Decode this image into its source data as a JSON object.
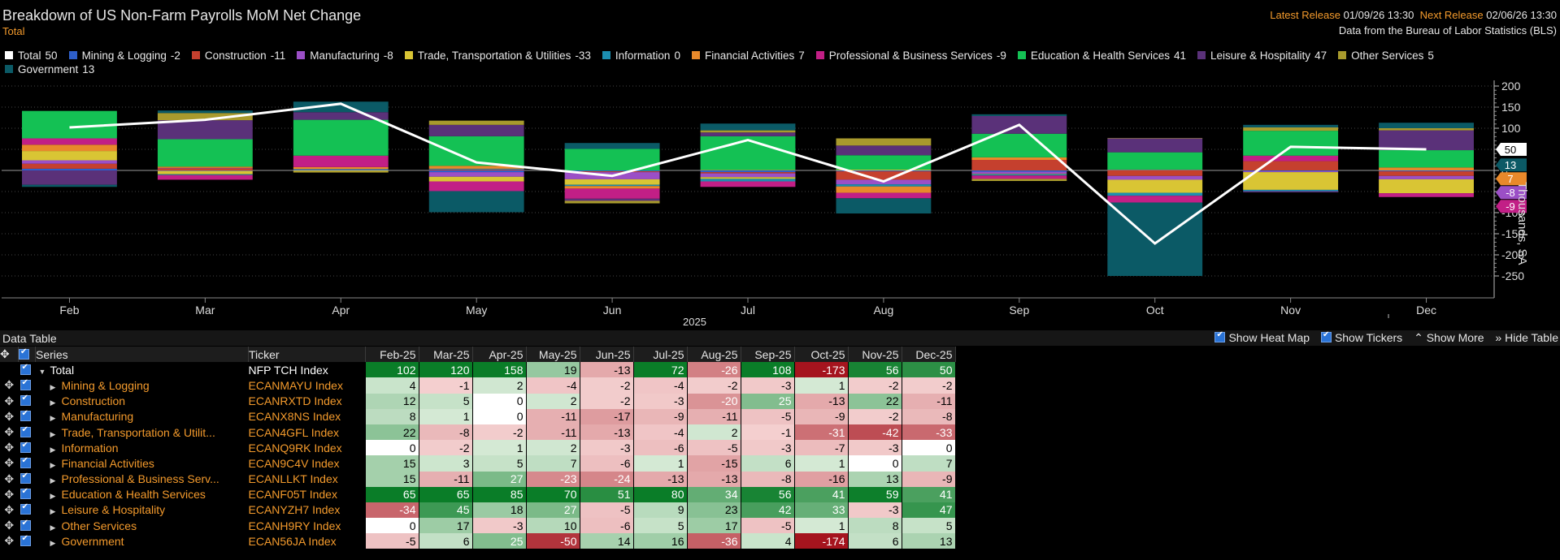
{
  "header": {
    "title": "Breakdown of US Non-Farm Payrolls MoM Net Change",
    "subtitle": "Total",
    "latest_release_label": "Latest Release",
    "latest_release_value": "01/09/26 13:30",
    "next_release_label": "Next Release",
    "next_release_value": "02/06/26 13:30",
    "source": "Data from the Bureau of Labor Statistics (BLS)"
  },
  "legend": [
    {
      "name": "Total",
      "value": "50",
      "color": "#ffffff"
    },
    {
      "name": "Mining & Logging",
      "value": "-2",
      "color": "#2e5fc9"
    },
    {
      "name": "Construction",
      "value": "-11",
      "color": "#c5402e"
    },
    {
      "name": "Manufacturing",
      "value": "-8",
      "color": "#9b4fc6"
    },
    {
      "name": "Trade, Transportation & Utilities",
      "value": "-33",
      "color": "#d9c534"
    },
    {
      "name": "Information",
      "value": "0",
      "color": "#1c8eb0"
    },
    {
      "name": "Financial Activities",
      "value": "7",
      "color": "#e8892b"
    },
    {
      "name": "Professional & Business Services",
      "value": "-9",
      "color": "#c21f86"
    },
    {
      "name": "Education & Health Services",
      "value": "41",
      "color": "#14c154"
    },
    {
      "name": "Leisure & Hospitality",
      "value": "47",
      "color": "#5a3179"
    },
    {
      "name": "Other Services",
      "value": "5",
      "color": "#a89a2d"
    },
    {
      "name": "Government",
      "value": "13",
      "color": "#0b5a66"
    }
  ],
  "chart_data": {
    "type": "bar",
    "stacked": true,
    "categories": [
      "Feb",
      "Mar",
      "Apr",
      "May",
      "Jun",
      "Jul",
      "Aug",
      "Sep",
      "Oct",
      "Nov",
      "Dec"
    ],
    "xlabel": "2025",
    "ylabel": "Thousands, SA",
    "ylim": [
      -300,
      200
    ],
    "yticks": [
      200,
      150,
      100,
      50,
      0,
      -50,
      -100,
      -150,
      -200,
      -250
    ],
    "axis_tick_labels": [
      "200",
      "150",
      "100",
      "50",
      "0",
      "-50",
      "-100",
      "-150",
      "-200",
      "-250"
    ],
    "line": {
      "name": "Total",
      "color": "#ffffff",
      "values": [
        102,
        120,
        158,
        19,
        -13,
        72,
        -26,
        108,
        -173,
        56,
        50
      ]
    },
    "series": [
      {
        "name": "Mining & Logging",
        "color": "#2e5fc9",
        "values": [
          4,
          -1,
          2,
          -4,
          -2,
          -4,
          -2,
          -3,
          1,
          -2,
          -2
        ]
      },
      {
        "name": "Construction",
        "color": "#c5402e",
        "values": [
          12,
          5,
          0,
          2,
          -2,
          -3,
          -20,
          25,
          -13,
          22,
          -11
        ]
      },
      {
        "name": "Manufacturing",
        "color": "#9b4fc6",
        "values": [
          8,
          1,
          0,
          -11,
          -17,
          -9,
          -11,
          -5,
          -9,
          -2,
          -8
        ]
      },
      {
        "name": "Trade, Transportation & Utilities",
        "color": "#d9c534",
        "values": [
          22,
          -8,
          -2,
          -11,
          -13,
          -4,
          2,
          -1,
          -31,
          -42,
          -33
        ]
      },
      {
        "name": "Information",
        "color": "#1c8eb0",
        "values": [
          0,
          -2,
          1,
          2,
          -3,
          -6,
          -5,
          -3,
          -7,
          -3,
          0
        ]
      },
      {
        "name": "Financial Activities",
        "color": "#e8892b",
        "values": [
          15,
          3,
          5,
          7,
          -6,
          1,
          -15,
          6,
          1,
          0,
          7
        ]
      },
      {
        "name": "Professional & Business Services",
        "color": "#c21f86",
        "values": [
          15,
          -11,
          27,
          -23,
          -24,
          -13,
          -13,
          -8,
          -16,
          13,
          -9
        ]
      },
      {
        "name": "Education & Health Services",
        "color": "#14c154",
        "values": [
          65,
          65,
          85,
          70,
          51,
          80,
          34,
          56,
          41,
          59,
          41
        ]
      },
      {
        "name": "Leisure & Hospitality",
        "color": "#5a3179",
        "values": [
          -34,
          45,
          18,
          27,
          -5,
          9,
          23,
          42,
          33,
          -3,
          47
        ]
      },
      {
        "name": "Other Services",
        "color": "#a89a2d",
        "values": [
          0,
          17,
          -3,
          10,
          -6,
          5,
          17,
          -5,
          1,
          8,
          5
        ]
      },
      {
        "name": "Government",
        "color": "#0b5a66",
        "values": [
          -5,
          6,
          25,
          -50,
          14,
          16,
          -36,
          4,
          -174,
          6,
          13
        ]
      }
    ],
    "end_labels": [
      {
        "value": "13",
        "color": "#0b5a66"
      },
      {
        "value": "50",
        "color": "#ffffff"
      },
      {
        "value": "7",
        "color": "#e8892b"
      },
      {
        "value": "-8",
        "color": "#9b4fc6"
      },
      {
        "value": "-9",
        "color": "#c21f86"
      }
    ]
  },
  "data_table": {
    "label": "Data Table",
    "controls": [
      "Show Heat Map",
      "Show Tickers",
      "Show More",
      "Hide Table"
    ],
    "columns": {
      "series": "Series",
      "ticker": "Ticker",
      "months": [
        "Feb-25",
        "Mar-25",
        "Apr-25",
        "May-25",
        "Jun-25",
        "Jul-25",
        "Aug-25",
        "Sep-25",
        "Oct-25",
        "Nov-25",
        "Dec-25"
      ]
    },
    "rows": [
      {
        "series": "Total",
        "ticker": "NFP TCH Index",
        "values": [
          102,
          120,
          158,
          19,
          -13,
          72,
          -26,
          108,
          -173,
          56,
          50
        ]
      },
      {
        "series": "Mining & Logging",
        "ticker": "ECANMAYU Index",
        "values": [
          4,
          -1,
          2,
          -4,
          -2,
          -4,
          -2,
          -3,
          1,
          -2,
          -2
        ]
      },
      {
        "series": "Construction",
        "ticker": "ECANRXTD Index",
        "values": [
          12,
          5,
          0,
          2,
          -2,
          -3,
          -20,
          25,
          -13,
          22,
          -11
        ]
      },
      {
        "series": "Manufacturing",
        "ticker": "ECANX8NS Index",
        "values": [
          8,
          1,
          0,
          -11,
          -17,
          -9,
          -11,
          -5,
          -9,
          -2,
          -8
        ]
      },
      {
        "series": "Trade, Transportation & Utilit...",
        "ticker": "ECAN4GFL Index",
        "values": [
          22,
          -8,
          -2,
          -11,
          -13,
          -4,
          2,
          -1,
          -31,
          -42,
          -33
        ]
      },
      {
        "series": "Information",
        "ticker": "ECANQ9RK Index",
        "values": [
          0,
          -2,
          1,
          2,
          -3,
          -6,
          -5,
          -3,
          -7,
          -3,
          0
        ]
      },
      {
        "series": "Financial Activities",
        "ticker": "ECAN9C4V Index",
        "values": [
          15,
          3,
          5,
          7,
          -6,
          1,
          -15,
          6,
          1,
          0,
          7
        ]
      },
      {
        "series": "Professional & Business Serv...",
        "ticker": "ECANLLKT Index",
        "values": [
          15,
          -11,
          27,
          -23,
          -24,
          -13,
          -13,
          -8,
          -16,
          13,
          -9
        ]
      },
      {
        "series": "Education & Health Services",
        "ticker": "ECANF05T Index",
        "values": [
          65,
          65,
          85,
          70,
          51,
          80,
          34,
          56,
          41,
          59,
          41
        ]
      },
      {
        "series": "Leisure & Hospitality",
        "ticker": "ECANYZH7 Index",
        "values": [
          -34,
          45,
          18,
          27,
          -5,
          9,
          23,
          42,
          33,
          -3,
          47
        ]
      },
      {
        "series": "Other Services",
        "ticker": "ECANH9RY Index",
        "values": [
          0,
          17,
          -3,
          10,
          -6,
          5,
          17,
          -5,
          1,
          8,
          5
        ]
      },
      {
        "series": "Government",
        "ticker": "ECAN56JA Index",
        "values": [
          -5,
          6,
          25,
          -50,
          14,
          16,
          -36,
          4,
          -174,
          6,
          13
        ]
      }
    ]
  }
}
